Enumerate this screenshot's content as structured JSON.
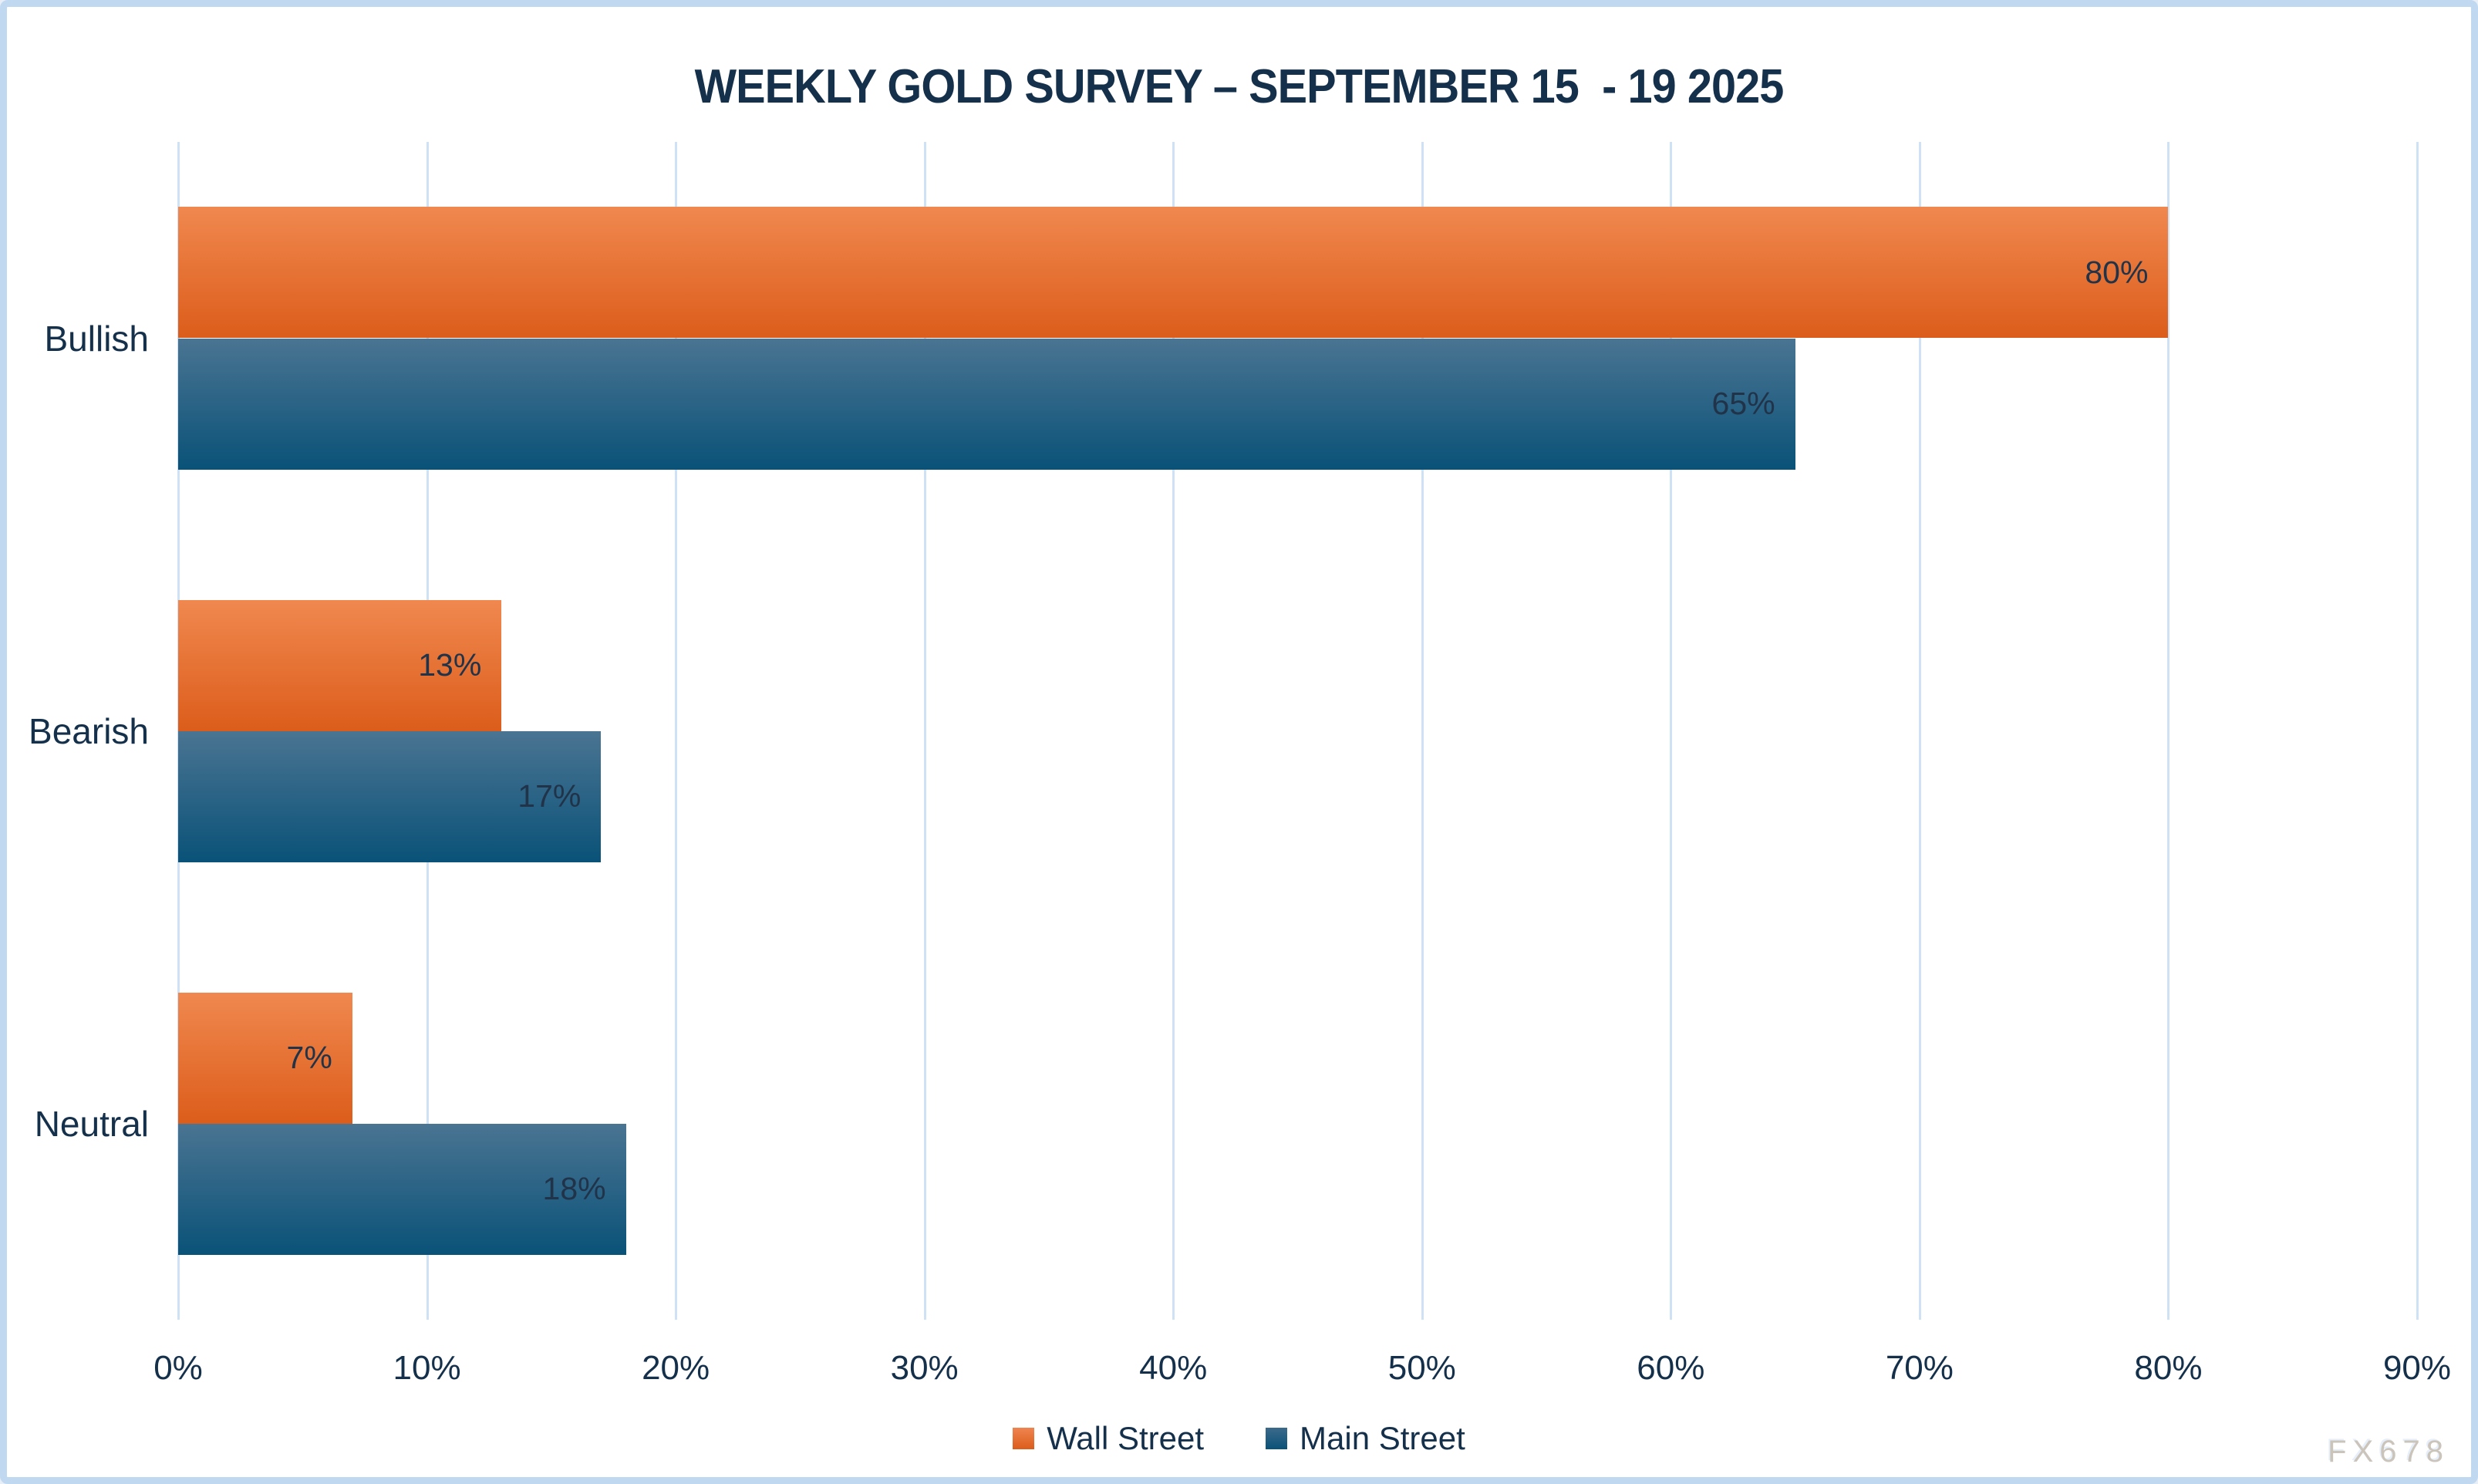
{
  "title": "WEEKLY GOLD SURVEY – SEPTEMBER 15  - 19 2025",
  "watermark": "FX678",
  "colors": {
    "text_navy": "#15304b",
    "wall_street_top": "#f0884f",
    "wall_street_bottom": "#dc5d1b",
    "main_street_top": "#4a7492",
    "main_street_bottom": "#0a5278",
    "gridline": "#cfe1f4",
    "frame_border": "#c0d9f1",
    "background": "#ffffff"
  },
  "chart_data": {
    "type": "bar",
    "orientation": "horizontal",
    "title": "WEEKLY GOLD SURVEY – SEPTEMBER 15  - 19 2025",
    "categories": [
      "Bullish",
      "Bearish",
      "Neutral"
    ],
    "series": [
      {
        "name": "Wall Street",
        "values": [
          80,
          13,
          7
        ]
      },
      {
        "name": "Main Street",
        "values": [
          65,
          17,
          18
        ]
      }
    ],
    "value_labels": [
      [
        "80%",
        "13%",
        "7%"
      ],
      [
        "65%",
        "17%",
        "18%"
      ]
    ],
    "x_ticks": [
      "0%",
      "10%",
      "20%",
      "30%",
      "40%",
      "50%",
      "60%",
      "70%",
      "80%",
      "90%"
    ],
    "xlim": [
      0,
      90
    ],
    "xlabel": "",
    "ylabel": "",
    "grid": true,
    "legend_position": "bottom"
  }
}
